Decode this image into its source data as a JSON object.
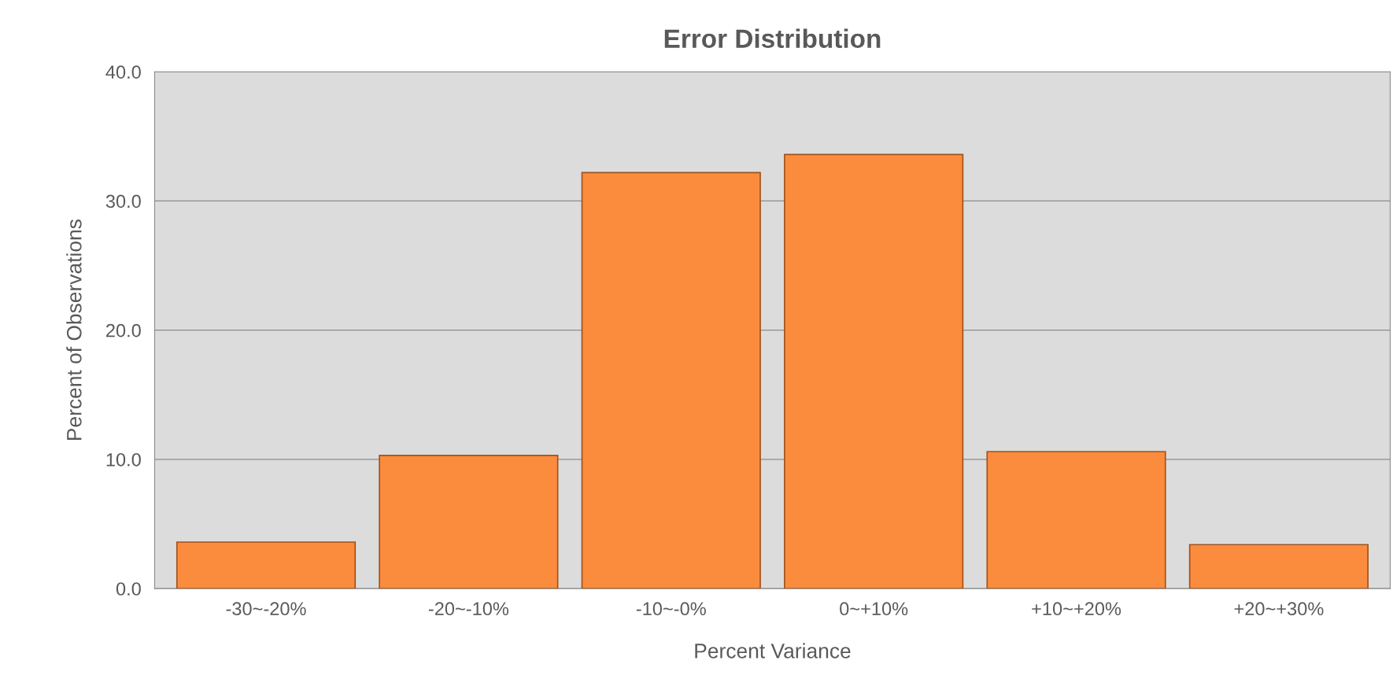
{
  "chart_data": {
    "type": "bar",
    "title": "Error Distribution",
    "xlabel": "Percent Variance",
    "ylabel": "Percent of Observations",
    "categories": [
      "-30~-20%",
      "-20~-10%",
      "-10~-0%",
      "0~+10%",
      "+10~+20%",
      "+20~+30%"
    ],
    "values": [
      3.6,
      10.3,
      32.2,
      33.6,
      10.6,
      3.4
    ],
    "color": "#fb8c3e",
    "ylim": [
      0,
      40
    ],
    "yticks": [
      {
        "value": 0,
        "label": "0.0"
      },
      {
        "value": 10,
        "label": "10.0"
      },
      {
        "value": 20,
        "label": "20.0"
      },
      {
        "value": 30,
        "label": "30.0"
      },
      {
        "value": 40,
        "label": "40.0"
      }
    ],
    "grid": "y",
    "legend": false
  }
}
